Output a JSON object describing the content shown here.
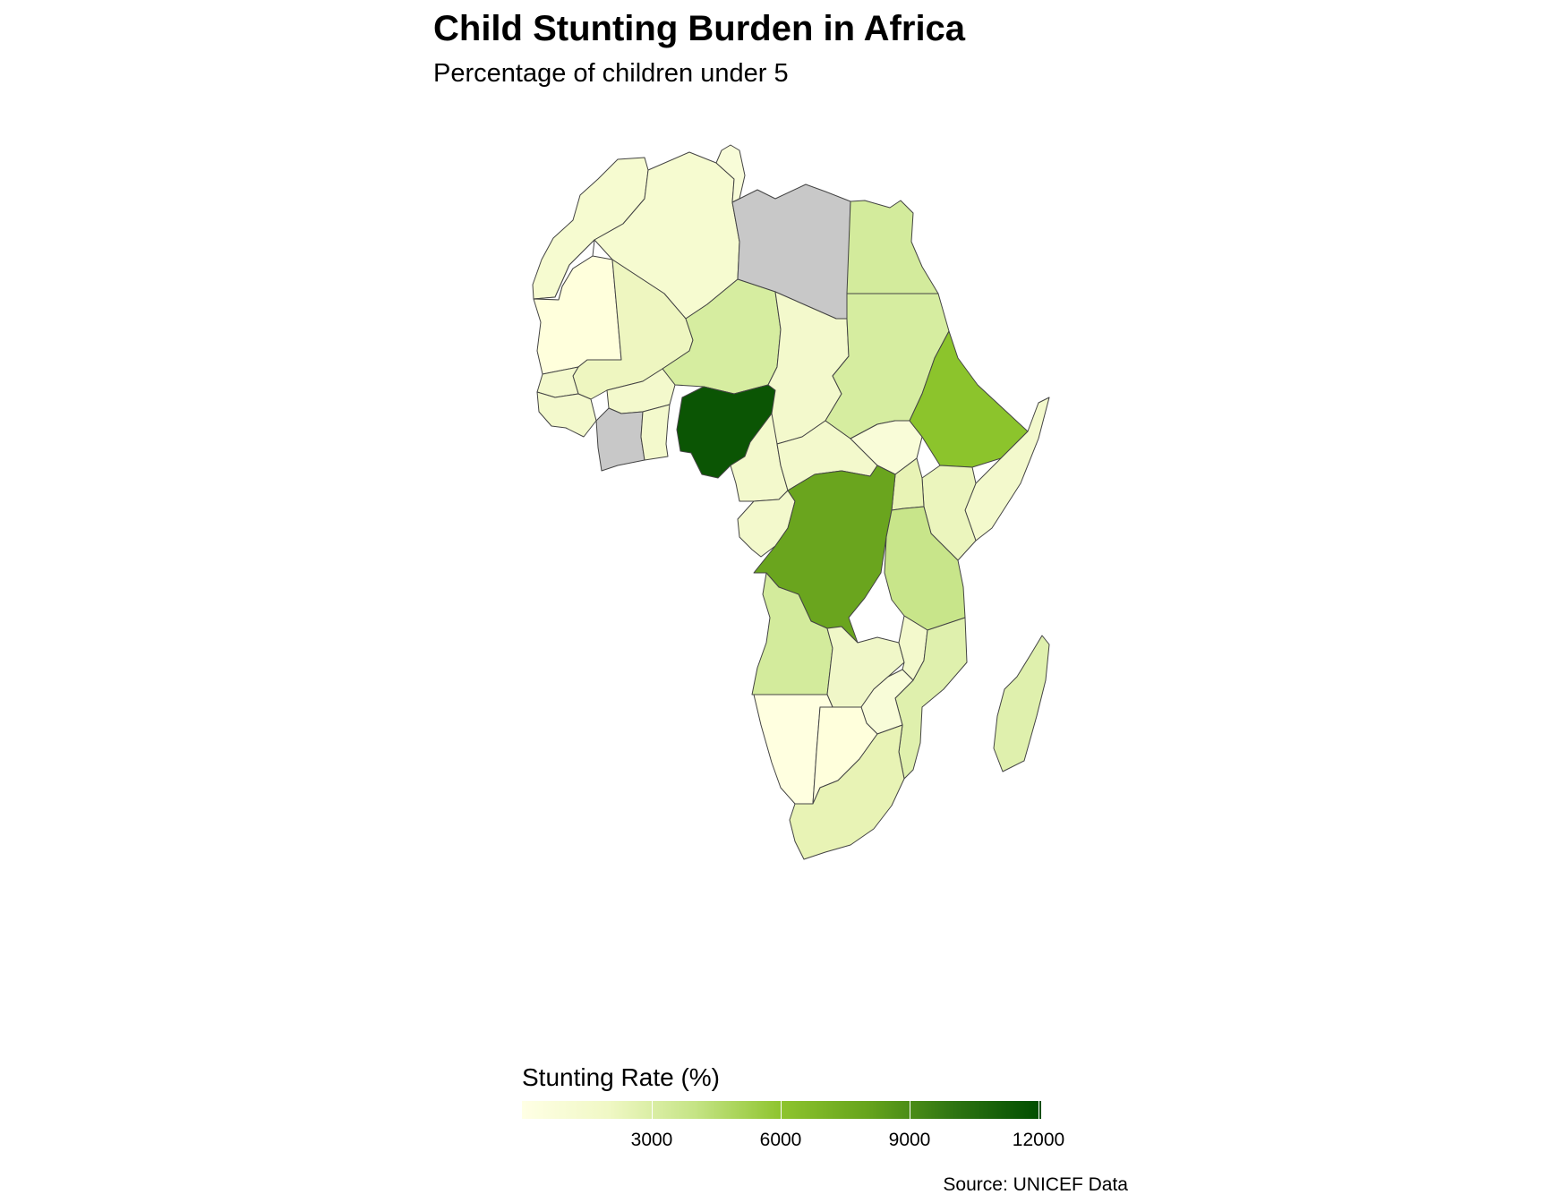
{
  "title": "Child Stunting Burden in Africa",
  "subtitle": "Percentage of children under 5",
  "legend": {
    "title": "Stunting Rate (%)",
    "ticks": [
      "3000",
      "6000",
      "9000",
      "12000"
    ],
    "colors": [
      "#ffffe5",
      "#f0f8c5",
      "#c5e485",
      "#8ec42e",
      "#66a41c",
      "#2e7412",
      "#004d00"
    ]
  },
  "caption": "Source: UNICEF Data",
  "regions": [
    {
      "name": "Morocco",
      "color": "#f6fbd0"
    },
    {
      "name": "Algeria",
      "color": "#f6fbd0"
    },
    {
      "name": "Tunisia",
      "color": "#f8fcd8"
    },
    {
      "name": "Libya",
      "color": "#c8c8c8"
    },
    {
      "name": "Egypt",
      "color": "#d3eb9c"
    },
    {
      "name": "Western Sahara",
      "color": "#ffffff"
    },
    {
      "name": "Mauritania",
      "color": "#ffffdc"
    },
    {
      "name": "Mali",
      "color": "#eef6c0"
    },
    {
      "name": "Niger",
      "color": "#d6eda0"
    },
    {
      "name": "Chad",
      "color": "#f3f9cc"
    },
    {
      "name": "Sudan",
      "color": "#d6eda0"
    },
    {
      "name": "South Sudan",
      "color": "#f9fcd8"
    },
    {
      "name": "Ethiopia",
      "color": "#8cc42c"
    },
    {
      "name": "Somalia",
      "color": "#f3f9cc"
    },
    {
      "name": "Kenya",
      "color": "#ebf5bd"
    },
    {
      "name": "Uganda",
      "color": "#e8f3b5"
    },
    {
      "name": "Tanzania",
      "color": "#c8e58a"
    },
    {
      "name": "Nigeria",
      "color": "#0b5504"
    },
    {
      "name": "Cote d'Ivoire",
      "color": "#c8c8c8"
    },
    {
      "name": "DR Congo",
      "color": "#6aa51e"
    },
    {
      "name": "Angola",
      "color": "#d3eb9c"
    },
    {
      "name": "Zambia",
      "color": "#f0f7c8"
    },
    {
      "name": "Mozambique",
      "color": "#dff0ad"
    },
    {
      "name": "Madagascar",
      "color": "#dff0ad"
    },
    {
      "name": "Namibia",
      "color": "#ffffe0"
    },
    {
      "name": "Botswana",
      "color": "#ffffdc"
    },
    {
      "name": "Zimbabwe",
      "color": "#f8fcd8"
    },
    {
      "name": "South Africa",
      "color": "#e8f3b5"
    }
  ]
}
